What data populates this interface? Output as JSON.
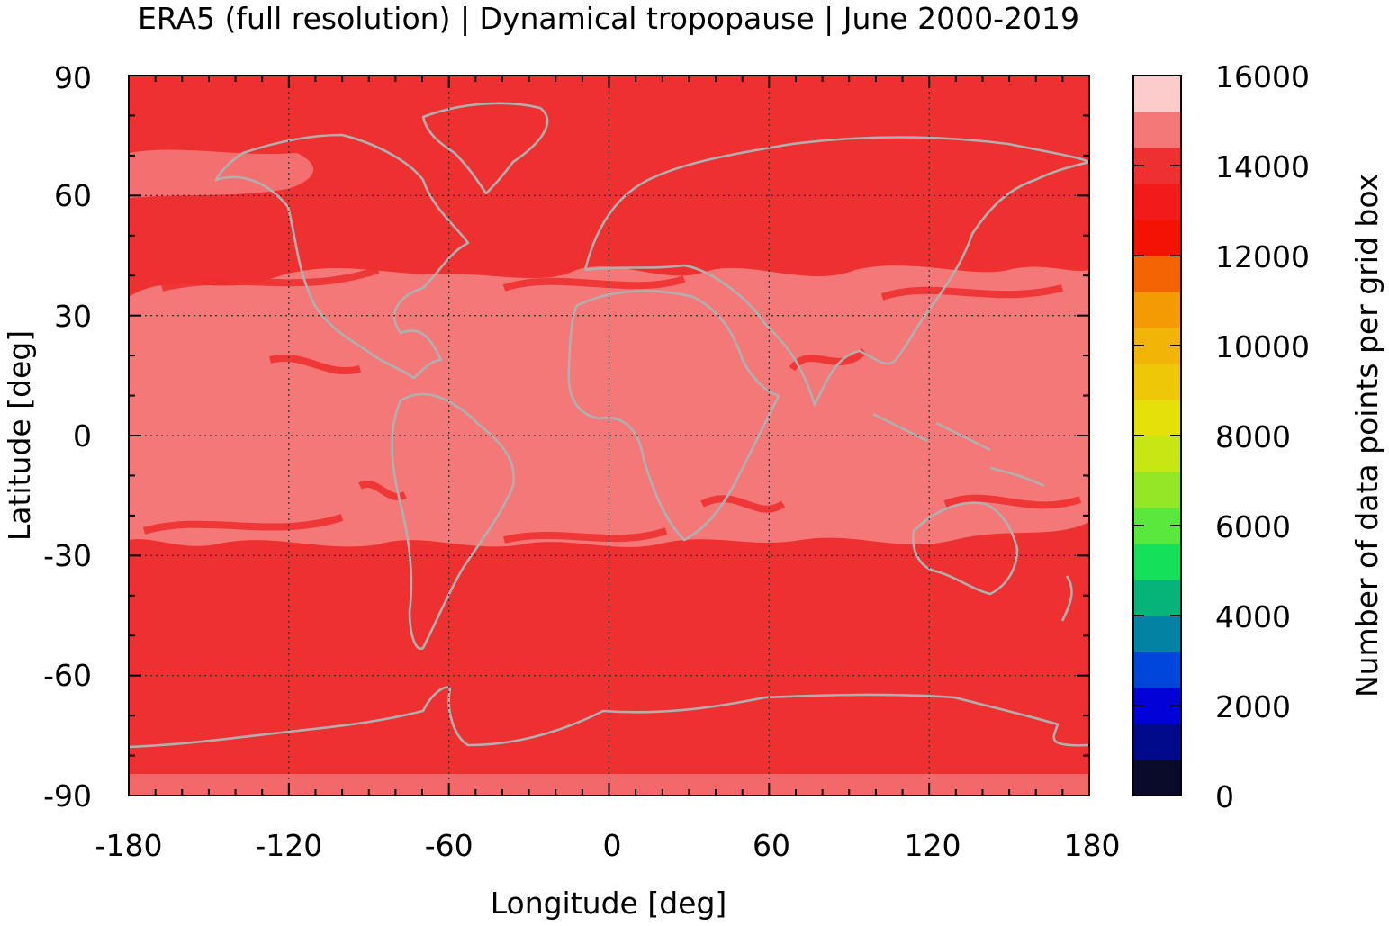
{
  "chart_data": {
    "type": "heatmap",
    "title": "ERA5 (full resolution) | Dynamical tropopause | June 2000-2019",
    "xlabel": "Longitude [deg]",
    "ylabel": "Latitude [deg]",
    "xlim": [
      -180,
      180
    ],
    "ylim": [
      -90,
      90
    ],
    "x_ticks": [
      "-180",
      "-120",
      "-60",
      "0",
      "60",
      "120",
      "180"
    ],
    "y_ticks": [
      "90",
      "60",
      "30",
      "0",
      "-30",
      "-60",
      "-90"
    ],
    "grid": true,
    "colorbar": {
      "label": "Number of data points per grid box",
      "range": [
        0,
        16000
      ],
      "tick_labels": [
        "16000",
        "14000",
        "12000",
        "10000",
        "8000",
        "6000",
        "4000",
        "2000",
        "0"
      ],
      "colors": [
        "#0a0a2a",
        "#020a8c",
        "#0202d8",
        "#0046d8",
        "#0482a4",
        "#06b47a",
        "#14e05a",
        "#5ae83c",
        "#96e628",
        "#c8e614",
        "#e6e00a",
        "#eec808",
        "#f2b406",
        "#f49a04",
        "#f46404",
        "#f41204",
        "#f21a1a",
        "#ee3030",
        "#f47878",
        "#fccccc"
      ]
    },
    "dominant_bands": [
      {
        "lat_range": "tropics and subtropics (~40S to ~40N)",
        "value_range": [
          14000,
          15000
        ]
      },
      {
        "lat_range": "mid and high latitudes",
        "value_range": [
          13600,
          14000
        ]
      }
    ],
    "coastline_color": "#b0b0b0"
  }
}
